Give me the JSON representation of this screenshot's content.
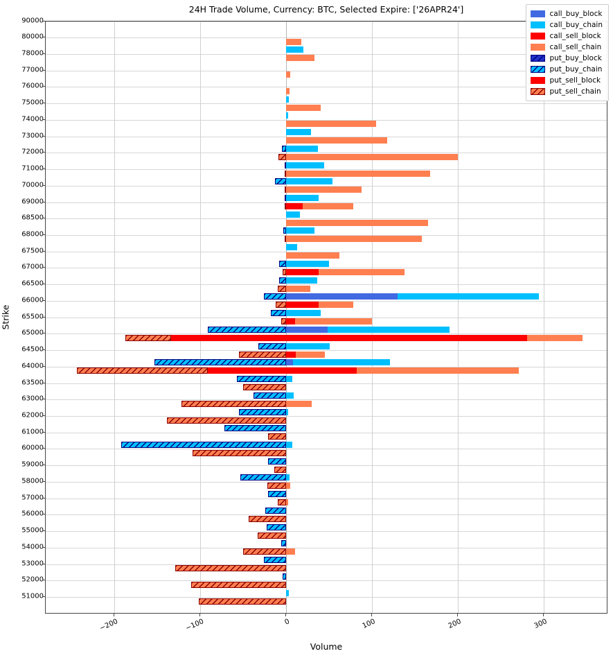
{
  "chart_data": {
    "type": "bar",
    "orientation": "horizontal",
    "title": "24H Trade Volume, Currency: BTC, Selected Expire: ['26APR24']",
    "xlabel": "Volume",
    "ylabel": "Strike",
    "xlim": [
      -280,
      375
    ],
    "xticks": [
      -200,
      -100,
      0,
      100,
      200,
      300
    ],
    "grid": true,
    "legend_position": "upper right",
    "strikes": [
      90000,
      80000,
      78000,
      77000,
      76000,
      75000,
      74000,
      73000,
      72000,
      71000,
      70000,
      69000,
      68500,
      68000,
      67500,
      67000,
      66500,
      66000,
      65500,
      65000,
      64500,
      64000,
      63500,
      63000,
      62000,
      61000,
      60000,
      59000,
      58000,
      57000,
      56000,
      55000,
      54000,
      53000,
      52000,
      51000
    ],
    "series_meta": [
      {
        "name": "call_buy_block",
        "color": "#4169E1",
        "hatch": false,
        "edge": "#4169E1",
        "row": "buy",
        "sign": 1
      },
      {
        "name": "call_buy_chain",
        "color": "#00BFFF",
        "hatch": false,
        "edge": "#00BFFF",
        "row": "buy",
        "sign": 1
      },
      {
        "name": "call_sell_block",
        "color": "#FF0000",
        "hatch": false,
        "edge": "#FF0000",
        "row": "sell",
        "sign": 1
      },
      {
        "name": "call_sell_chain",
        "color": "#FF7F50",
        "hatch": false,
        "edge": "#FF7F50",
        "row": "sell",
        "sign": 1
      },
      {
        "name": "put_buy_block",
        "color": "#2132C8",
        "hatch": true,
        "edge": "#000080",
        "row": "buy",
        "sign": -1
      },
      {
        "name": "put_buy_chain",
        "color": "#00BFFF",
        "hatch": true,
        "edge": "#000080",
        "row": "buy",
        "sign": -1
      },
      {
        "name": "put_sell_block",
        "color": "#FF0000",
        "hatch": false,
        "edge": "#C00000",
        "row": "sell",
        "sign": -1
      },
      {
        "name": "put_sell_chain",
        "color": "#FF7F50",
        "hatch": true,
        "edge": "#8B0000",
        "row": "sell",
        "sign": -1
      }
    ],
    "series": [
      {
        "name": "call_buy_block",
        "values": [
          0,
          0,
          0,
          0,
          0,
          0,
          0,
          0,
          0,
          0,
          0,
          0,
          0,
          0,
          0,
          0,
          0,
          130,
          0,
          48,
          0,
          8,
          0,
          0,
          0,
          0,
          0,
          0,
          0,
          0,
          0,
          0,
          0,
          0,
          0,
          0
        ]
      },
      {
        "name": "call_buy_chain",
        "values": [
          0,
          0,
          20,
          0,
          0,
          3,
          2,
          29,
          37,
          44,
          54,
          38,
          16,
          33,
          13,
          50,
          36,
          164,
          40,
          142,
          51,
          113,
          7,
          9,
          2,
          0,
          7,
          0,
          4,
          0,
          0,
          0,
          0,
          0,
          0,
          3
        ]
      },
      {
        "name": "call_sell_block",
        "values": [
          0,
          0,
          0,
          0,
          0,
          0,
          0,
          0,
          0,
          0,
          0,
          19,
          0,
          0,
          0,
          38,
          0,
          38,
          10,
          281,
          11,
          82,
          0,
          0,
          0,
          0,
          0,
          0,
          0,
          0,
          0,
          0,
          0,
          0,
          0,
          0
        ]
      },
      {
        "name": "call_sell_chain",
        "values": [
          0,
          18,
          33,
          5,
          4,
          40,
          105,
          118,
          200,
          168,
          88,
          59,
          165,
          158,
          62,
          100,
          28,
          40,
          90,
          64,
          34,
          189,
          0,
          30,
          0,
          0,
          0,
          0,
          5,
          2,
          0,
          0,
          10,
          0,
          0,
          0
        ]
      },
      {
        "name": "put_buy_block",
        "values": [
          0,
          0,
          0,
          0,
          0,
          0,
          0,
          0,
          0,
          0,
          0,
          0,
          0,
          0,
          0,
          0,
          0,
          0,
          0,
          0,
          0,
          0,
          0,
          0,
          0,
          0,
          0,
          0,
          0,
          0,
          0,
          0,
          0,
          0,
          0,
          0
        ]
      },
      {
        "name": "put_buy_chain",
        "values": [
          0,
          0,
          0,
          0,
          0,
          0,
          0,
          0,
          5,
          2,
          13,
          2,
          0,
          3,
          0,
          8,
          8,
          26,
          18,
          91,
          32,
          153,
          57,
          38,
          55,
          72,
          192,
          21,
          53,
          21,
          24,
          23,
          6,
          26,
          4,
          0
        ]
      },
      {
        "name": "put_sell_block",
        "values": [
          0,
          0,
          0,
          0,
          0,
          0,
          0,
          0,
          0,
          0,
          0,
          0,
          0,
          0,
          0,
          0,
          0,
          0,
          0,
          134,
          0,
          91,
          0,
          0,
          0,
          0,
          0,
          0,
          0,
          0,
          0,
          0,
          0,
          0,
          0,
          0
        ]
      },
      {
        "name": "put_sell_chain",
        "values": [
          0,
          0,
          0,
          0,
          0,
          0,
          0,
          0,
          9,
          2,
          2,
          2,
          0,
          2,
          0,
          4,
          10,
          12,
          6,
          53,
          55,
          153,
          50,
          122,
          139,
          21,
          109,
          14,
          22,
          10,
          44,
          33,
          50,
          129,
          111,
          102
        ]
      }
    ]
  }
}
